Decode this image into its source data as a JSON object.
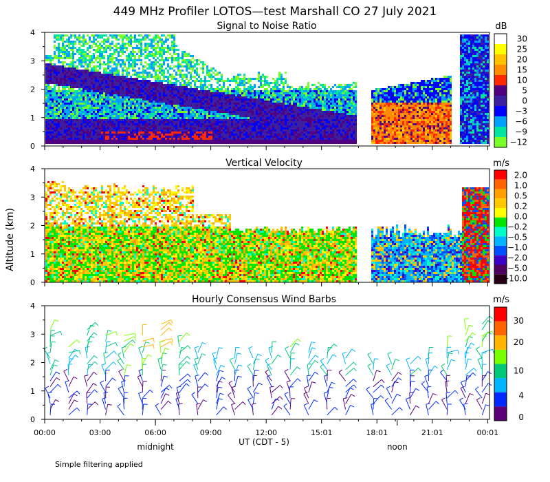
{
  "figure": {
    "title": "449 MHz Profiler LOTOS—test Marshall CO 27 July 2021",
    "ylabel": "Altitude (km)",
    "xlabel": "UT (CDT - 5)",
    "x_ticks": [
      "00:00",
      "03:00",
      "06:00",
      "09:00",
      "12:00",
      "15:01",
      "18:01",
      "21:01",
      "00:01"
    ],
    "x_tick_hours": [
      0,
      3,
      6,
      9,
      12,
      15,
      18,
      21,
      24
    ],
    "markers": [
      {
        "label": "midnight",
        "hour": 6
      },
      {
        "label": "noon",
        "hour": 19.1
      }
    ],
    "footnote": "Simple filtering applied"
  },
  "chart_data": [
    {
      "type": "heatmap",
      "title": "Signal to Noise Ratio",
      "x_range_hours": [
        0,
        24.1
      ],
      "ylim": [
        0,
        4
      ],
      "y_ticks": [
        0,
        1,
        2,
        3,
        4
      ],
      "gaps_hours": [
        [
          16.8,
          17.6
        ],
        [
          22.05,
          22.4
        ]
      ],
      "colorbar": {
        "unit": "dB",
        "labels": [
          "30",
          "25",
          "20",
          "15",
          "10",
          "5",
          "0",
          "−3",
          "−6",
          "−9",
          "−12"
        ],
        "colors": [
          "#ffffff",
          "#ffff00",
          "#ffc000",
          "#ff8c00",
          "#ff2800",
          "#500080",
          "#3c1ea0",
          "#0000ff",
          "#00a0ff",
          "#00e6a0",
          "#78ff28"
        ]
      }
    },
    {
      "type": "heatmap",
      "title": "Vertical Velocity",
      "x_range_hours": [
        0,
        24.1
      ],
      "ylim": [
        0,
        4
      ],
      "y_ticks": [
        0,
        1,
        2,
        3,
        4
      ],
      "gaps_hours": [
        [
          16.8,
          17.6
        ]
      ],
      "colorbar": {
        "unit": "m/s",
        "labels": [
          "2.0",
          "1.0",
          "0.5",
          "0.2",
          "0.0",
          "−0.2",
          "−0.5",
          "−1.0",
          "−2.0",
          "−5.0",
          "−10.0"
        ],
        "colors": [
          "#ff0000",
          "#ff6400",
          "#ffa000",
          "#ffc800",
          "#ffff00",
          "#00e600",
          "#00ffc8",
          "#00b4ff",
          "#0050ff",
          "#3c00c8",
          "#500060",
          "#280014"
        ]
      }
    },
    {
      "type": "wind_barbs",
      "title": "Hourly Consensus Wind Barbs",
      "ylim": [
        0,
        4
      ],
      "y_ticks": [
        0,
        1,
        2,
        3,
        4
      ],
      "hours": [
        0.3,
        1.3,
        2.3,
        3.3,
        4.3,
        5.3,
        6.3,
        7.3,
        8.3,
        9.3,
        10.3,
        11.3,
        12.3,
        13.3,
        14.3,
        15.3,
        16.3,
        17.8,
        18.8,
        19.8,
        20.8,
        21.8,
        22.8,
        23.7
      ],
      "top_heights_km": [
        3.2,
        2.7,
        3.3,
        3.0,
        3.1,
        3.0,
        3.4,
        2.8,
        2.5,
        2.2,
        2.3,
        2.2,
        2.4,
        2.6,
        2.5,
        2.4,
        2.3,
        2.1,
        2.0,
        2.0,
        2.3,
        2.6,
        3.2,
        3.5
      ],
      "colorbar": {
        "unit": "m/s",
        "labels": [
          "30",
          "20",
          "10",
          "4",
          "0"
        ],
        "colors": [
          "#ff0000",
          "#ff6400",
          "#ffb400",
          "#78ff00",
          "#00c878",
          "#00b4ff",
          "#0028ff",
          "#5a0078"
        ]
      }
    }
  ]
}
